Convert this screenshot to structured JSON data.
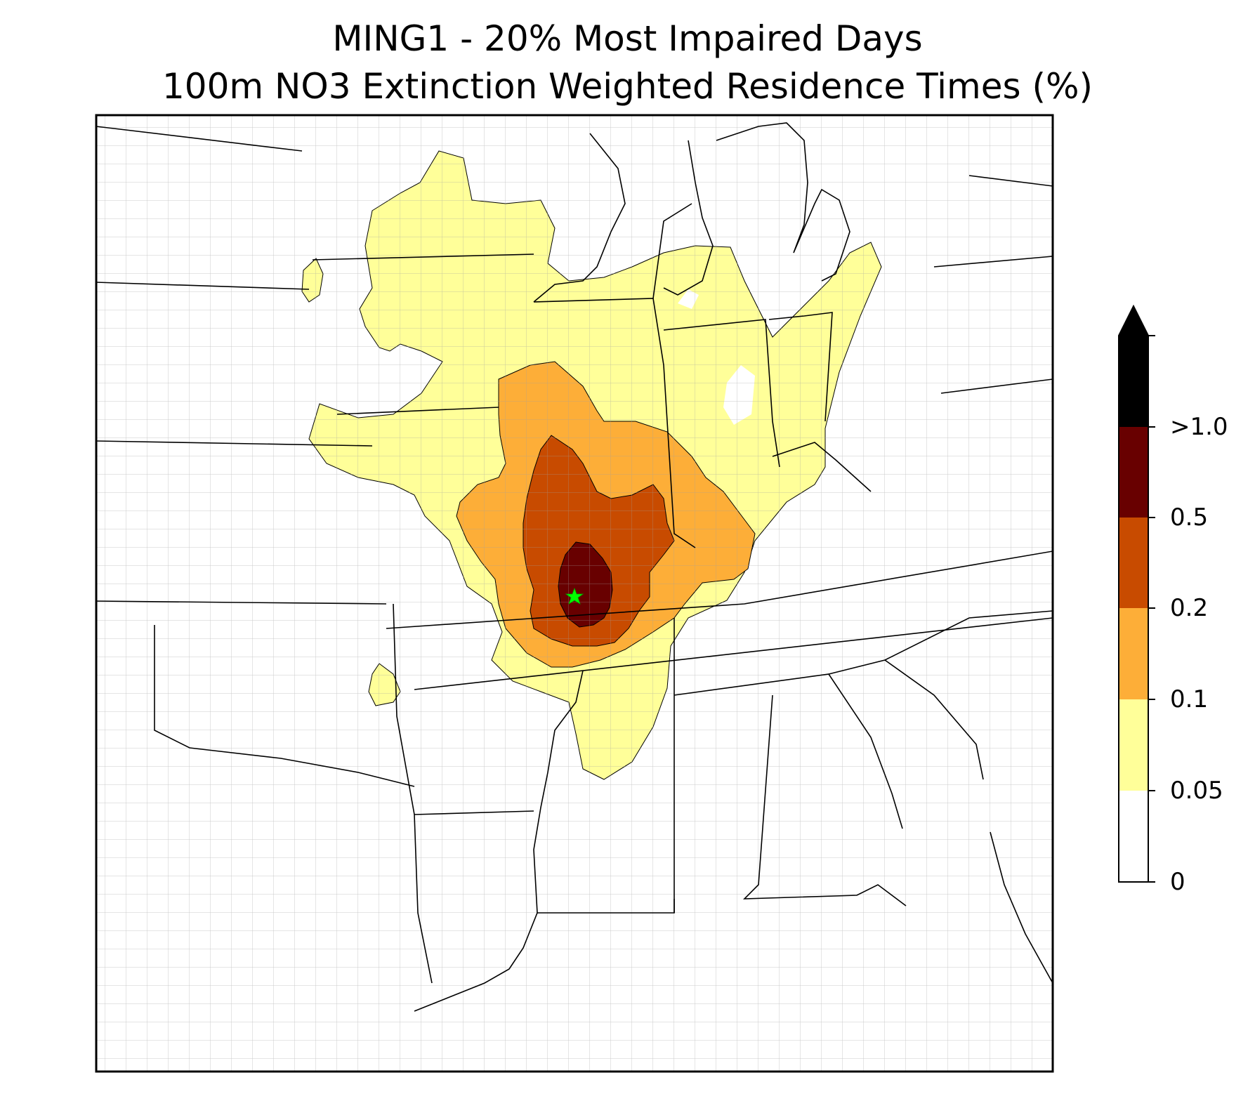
{
  "title": {
    "line1": "MING1 - 20% Most Impaired Days",
    "line2": "100m NO3 Extinction Weighted Residence Times (%)"
  },
  "colorbar": {
    "levels": [
      {
        "label": "0",
        "color": "#ffffff"
      },
      {
        "label": "0.05",
        "color": "#ffff99"
      },
      {
        "label": "0.1",
        "color": "#fdae38"
      },
      {
        "label": "0.2",
        "color": "#c84b00"
      },
      {
        "label": "0.5",
        "color": "#680000"
      },
      {
        "label": ">1.0",
        "color": "#000000"
      }
    ],
    "extend": "max"
  },
  "map": {
    "site_marker": "green-star",
    "site_color": "#00ff00",
    "state_line_color": "#000000",
    "county_line_color": "#a0a0a0"
  }
}
